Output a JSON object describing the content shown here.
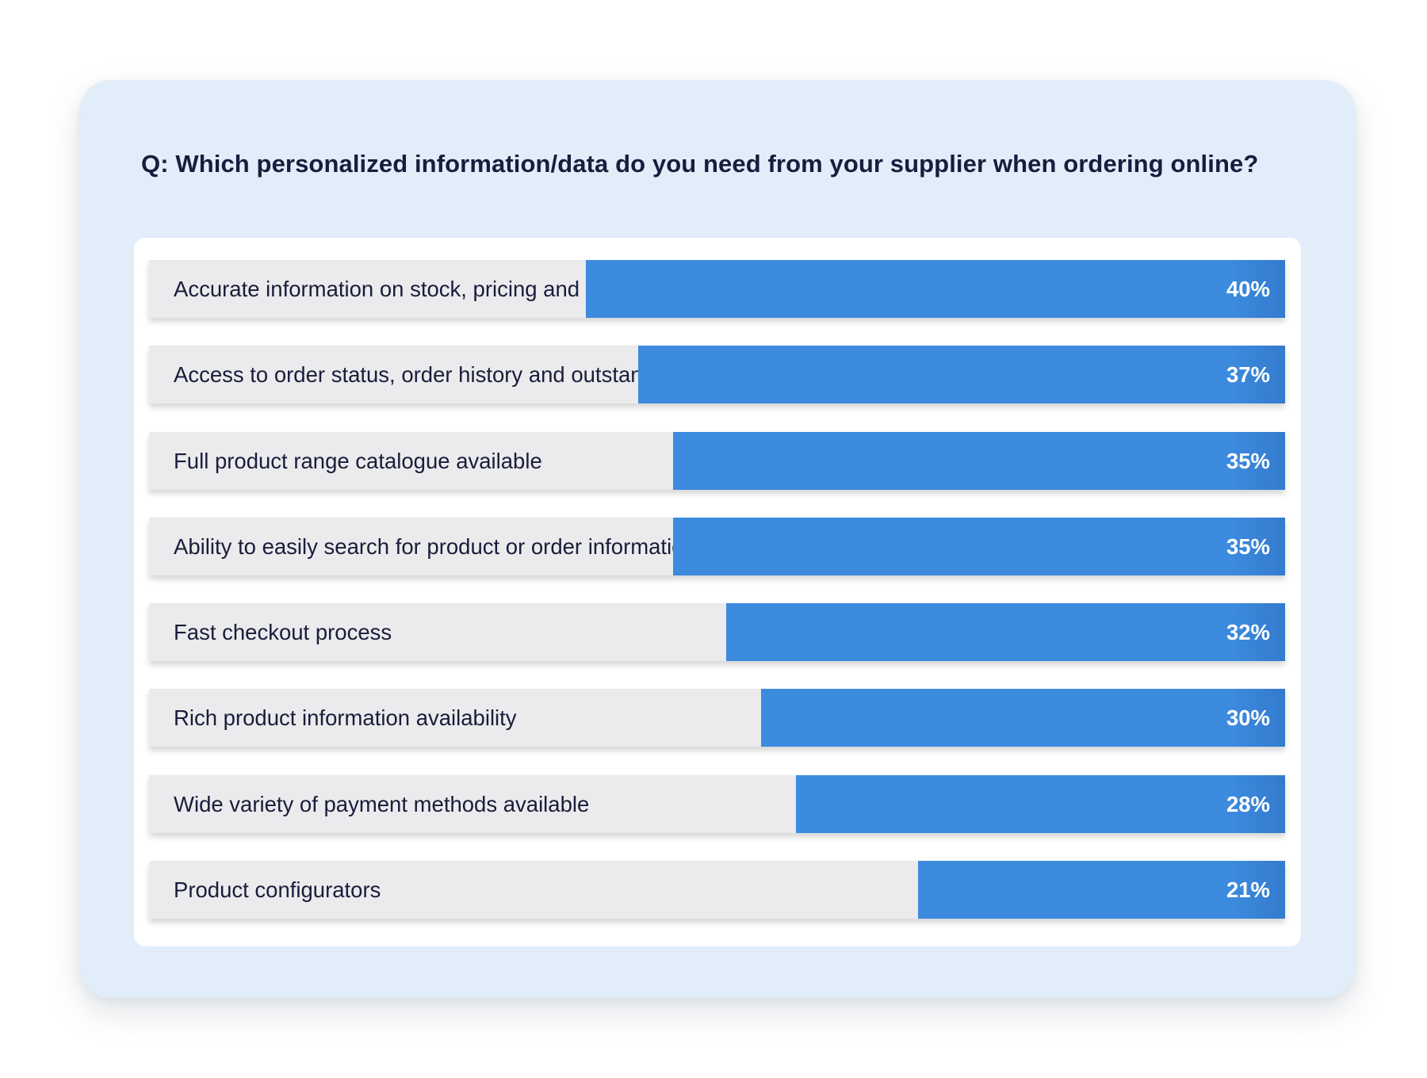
{
  "chart_data": {
    "type": "bar",
    "orientation": "horizontal",
    "title": "Q: Which personalized information/data do you need from your supplier when ordering online?",
    "categories": [
      "Accurate information on stock, pricing and delivery dates",
      "Access to order status, order history and outstanding invoices",
      "Full product range catalogue available",
      "Ability to easily search for product or order information",
      "Fast checkout process",
      "Rich product information availability",
      "Wide variety of payment methods available",
      "Product configurators"
    ],
    "values": [
      40,
      37,
      35,
      35,
      32,
      30,
      28,
      21
    ],
    "value_labels": [
      "40%",
      "37%",
      "35%",
      "35%",
      "32%",
      "30%",
      "28%",
      "21%"
    ],
    "xlim": [
      0,
      65
    ],
    "colors": {
      "bar": "#3c8bdf",
      "track": "#ebebed",
      "card_background": "#e1edf9",
      "text": "#171d3d"
    }
  }
}
